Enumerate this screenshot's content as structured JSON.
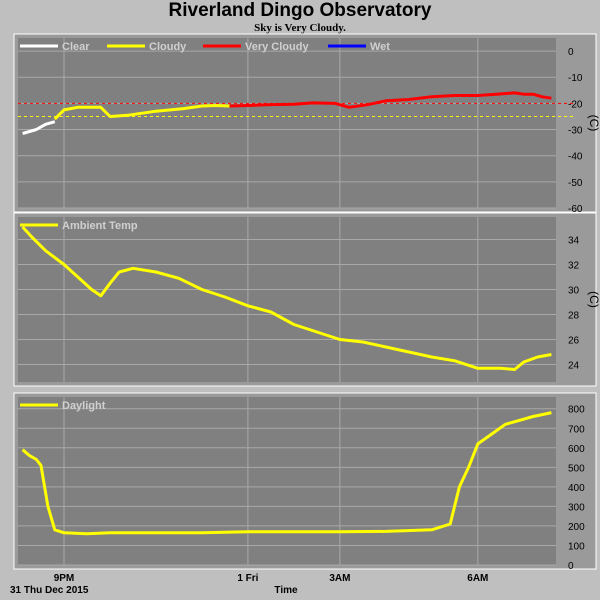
{
  "header": {
    "title": "Riverland Dingo Observatory",
    "subtitle": "Sky is Very Cloudy."
  },
  "footer": {
    "date_label": "31 Thu Dec 2015",
    "x_axis_label": "Time"
  },
  "colors": {
    "background": "#bfbfbf",
    "plot_background": "#808080",
    "grid": "#a8a8a8",
    "clear": "#ffffff",
    "cloudy": "#ffff00",
    "very_cloudy": "#ff0000",
    "wet": "#0000ff"
  },
  "chart_data": [
    {
      "type": "line",
      "panel": "sky",
      "ylabel": "(C)",
      "ylim": [
        -60,
        5
      ],
      "y_ticks": [
        "0",
        "-10",
        "-20",
        "-30",
        "-40",
        "-50",
        "-60"
      ],
      "x_ticks": [
        "9PM",
        "1 Fri",
        "3AM",
        "6AM"
      ],
      "x_ticks_hours": [
        21,
        25,
        27,
        30
      ],
      "xlim_hours": [
        20.0,
        31.7
      ],
      "legend": [
        "Clear",
        "Cloudy",
        "Very Cloudy",
        "Wet"
      ],
      "thresholds": [
        {
          "value": -20,
          "color": "#ff0000",
          "style": "dashed"
        },
        {
          "value": -25,
          "color": "#ffff00",
          "style": "dashed"
        }
      ],
      "series": [
        {
          "name": "Clear",
          "color": "#ffffff",
          "x": [
            20.1,
            20.4,
            20.6,
            20.8
          ],
          "values": [
            -31.5,
            -30,
            -28,
            -27
          ]
        },
        {
          "name": "Cloudy",
          "color": "#ffff00",
          "x": [
            20.8,
            21.0,
            21.3,
            21.8,
            22.0,
            22.4,
            23.0,
            23.6,
            24.0,
            24.3,
            24.6
          ],
          "values": [
            -26,
            -22.5,
            -21.5,
            -21.5,
            -25,
            -24.5,
            -23,
            -22,
            -21,
            -20.8,
            -21
          ]
        },
        {
          "name": "Very Cloudy",
          "color": "#ff0000",
          "x": [
            24.6,
            25.0,
            25.4,
            26.0,
            26.4,
            26.9,
            27.2,
            27.6,
            28.0,
            28.5,
            29.0,
            29.5,
            30.0,
            30.4,
            30.8,
            31.0,
            31.2,
            31.4,
            31.6
          ],
          "values": [
            -21,
            -20.8,
            -20.5,
            -20.3,
            -19.8,
            -20,
            -21.5,
            -20.5,
            -19,
            -18.5,
            -17.5,
            -17,
            -17,
            -16.5,
            -16,
            -16.5,
            -16.5,
            -17.5,
            -18
          ]
        }
      ]
    },
    {
      "type": "line",
      "panel": "ambient",
      "ylabel": "(C)",
      "ylim": [
        22.6,
        35.8
      ],
      "y_ticks": [
        "34",
        "32",
        "30",
        "28",
        "26",
        "24"
      ],
      "x_ticks": [
        "9PM",
        "1 Fri",
        "3AM",
        "6AM"
      ],
      "x_ticks_hours": [
        21,
        25,
        27,
        30
      ],
      "xlim_hours": [
        20.0,
        31.7
      ],
      "legend": [
        "Ambient Temp"
      ],
      "series": [
        {
          "name": "Ambient Temp",
          "color": "#ffff00",
          "x": [
            20.1,
            20.3,
            20.6,
            21.0,
            21.3,
            21.6,
            21.8,
            22.0,
            22.2,
            22.5,
            23.0,
            23.5,
            24.0,
            24.5,
            25.0,
            25.5,
            26.0,
            26.5,
            27.0,
            27.5,
            28.0,
            28.5,
            29.0,
            29.5,
            30.0,
            30.5,
            30.8,
            31.0,
            31.3,
            31.6
          ],
          "values": [
            35,
            34.2,
            33.1,
            32,
            31,
            30,
            29.5,
            30.5,
            31.4,
            31.7,
            31.4,
            30.9,
            30,
            29.4,
            28.7,
            28.2,
            27.2,
            26.6,
            26.0,
            25.8,
            25.4,
            25.0,
            24.6,
            24.3,
            23.7,
            23.7,
            23.6,
            24.2,
            24.6,
            24.8
          ]
        }
      ]
    },
    {
      "type": "line",
      "panel": "daylight",
      "ylabel": "",
      "ylim": [
        0,
        860
      ],
      "y_ticks": [
        "800",
        "700",
        "600",
        "500",
        "400",
        "300",
        "200",
        "100",
        "0"
      ],
      "x_ticks": [
        "9PM",
        "1 Fri",
        "3AM",
        "6AM"
      ],
      "x_ticks_hours": [
        21,
        25,
        27,
        30
      ],
      "xlim_hours": [
        20.0,
        31.7
      ],
      "legend": [
        "Daylight"
      ],
      "series": [
        {
          "name": "Daylight",
          "color": "#ffff00",
          "x": [
            20.1,
            20.25,
            20.4,
            20.5,
            20.65,
            20.8,
            21.0,
            21.5,
            22.0,
            23.0,
            24.0,
            25.0,
            26.0,
            27.0,
            28.0,
            29.0,
            29.4,
            29.6,
            29.8,
            30.0,
            30.3,
            30.6,
            30.9,
            31.2,
            31.4,
            31.6
          ],
          "values": [
            590,
            560,
            540,
            510,
            300,
            180,
            165,
            160,
            165,
            165,
            165,
            170,
            170,
            170,
            172,
            180,
            210,
            400,
            500,
            620,
            670,
            720,
            740,
            760,
            770,
            780
          ]
        }
      ]
    }
  ]
}
